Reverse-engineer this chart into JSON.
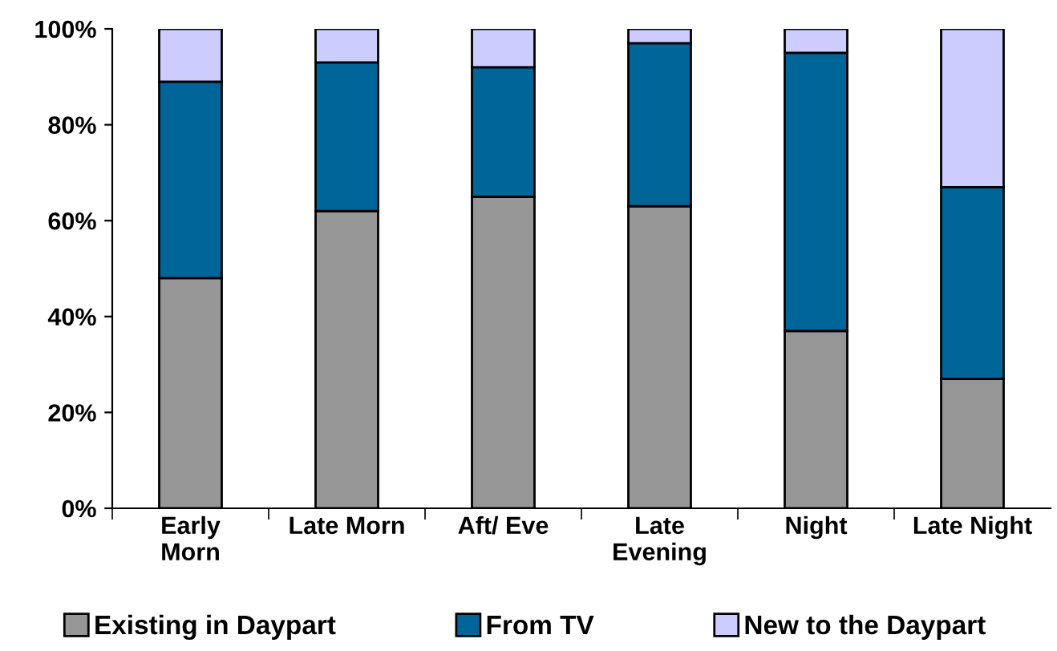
{
  "chart_data": {
    "type": "bar",
    "stacked": true,
    "categories": [
      "Early\nMorn",
      "Late Morn",
      "Aft/ Eve",
      "Late\nEvening",
      "Night",
      "Late Night"
    ],
    "series": [
      {
        "name": "Existing in Daypart",
        "color": "#969696",
        "values": [
          48,
          62,
          65,
          63,
          37,
          27
        ]
      },
      {
        "name": "From TV",
        "color": "#006699",
        "values": [
          41,
          31,
          27,
          34,
          58,
          40
        ]
      },
      {
        "name": "New to the Daypart",
        "color": "#ccccff",
        "values": [
          11,
          7,
          8,
          3,
          5,
          33
        ]
      }
    ],
    "ylim": [
      0,
      100
    ],
    "yticks": [
      {
        "value": 0,
        "label": "0%"
      },
      {
        "value": 20,
        "label": "20%"
      },
      {
        "value": 40,
        "label": "40%"
      },
      {
        "value": 60,
        "label": "60%"
      },
      {
        "value": 80,
        "label": "80%"
      },
      {
        "value": 100,
        "label": "100%"
      }
    ],
    "grid": false,
    "legend": "bottom"
  }
}
